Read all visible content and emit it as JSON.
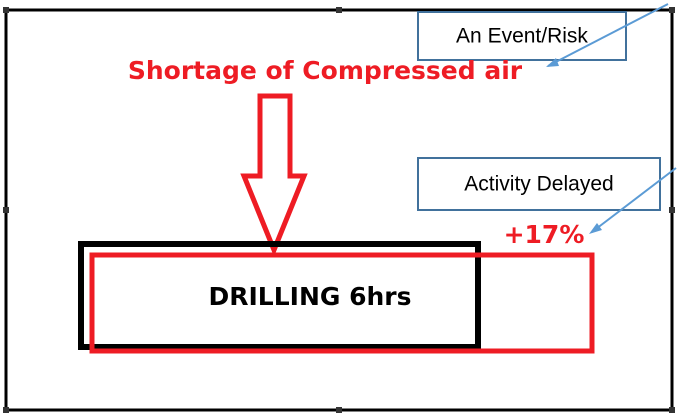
{
  "callouts": [
    {
      "label": "An Event/Risk"
    },
    {
      "label": "Activity Delayed"
    }
  ],
  "event": {
    "label": "Shortage of Compressed air"
  },
  "delay": {
    "label": "+17%"
  },
  "activity": {
    "label": "DRILLING 6hrs"
  }
}
